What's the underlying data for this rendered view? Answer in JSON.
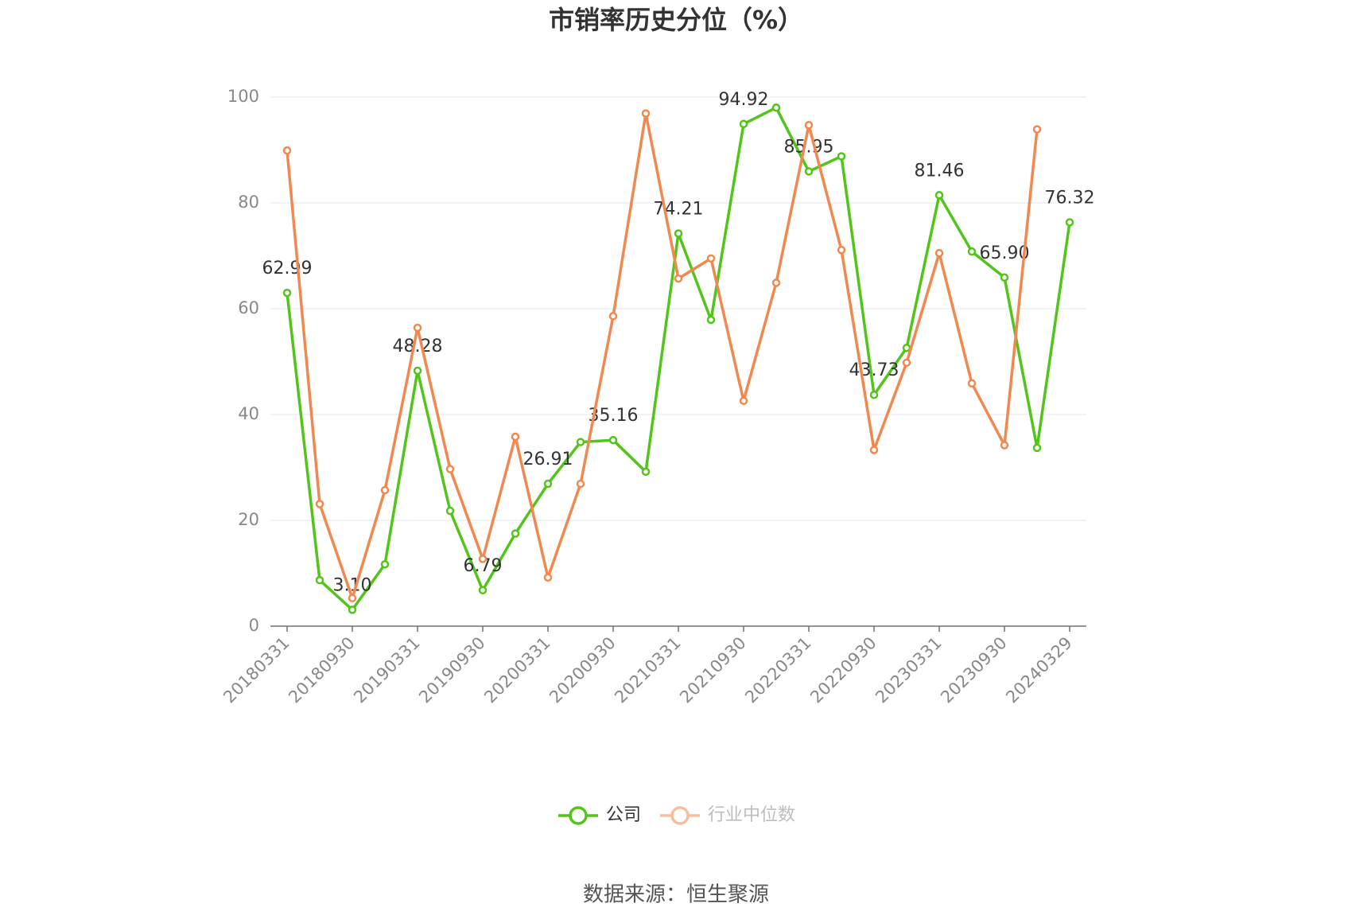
{
  "chart_data": {
    "type": "line",
    "title": "市销率历史分位（%）",
    "categories": [
      "20180331",
      null,
      "20180930",
      null,
      "20190331",
      null,
      "20190930",
      null,
      "20200331",
      null,
      "20200930",
      null,
      "20210331",
      null,
      "20210930",
      null,
      "20220331",
      null,
      "20220930",
      null,
      "20230331",
      null,
      "20230930",
      null,
      "20240329"
    ],
    "series": [
      {
        "name": "公司",
        "color": "#52c41a",
        "values": [
          62.99,
          8.7,
          3.1,
          11.7,
          48.28,
          21.8,
          6.79,
          17.5,
          26.91,
          34.8,
          35.16,
          29.2,
          74.21,
          57.9,
          94.92,
          98.0,
          85.95,
          88.8,
          43.73,
          52.6,
          81.46,
          70.8,
          65.9,
          33.7,
          76.32
        ],
        "value_labels": [
          "62.99",
          null,
          "3.10",
          null,
          "48.28",
          null,
          "6.79",
          null,
          "26.91",
          null,
          "35.16",
          null,
          "74.21",
          null,
          "94.92",
          null,
          "85.95",
          null,
          "43.73",
          null,
          "81.46",
          null,
          "65.90",
          null,
          "76.32"
        ]
      },
      {
        "name": "行业中位数",
        "color": "#f0884f",
        "values": [
          89.9,
          23.1,
          5.3,
          25.7,
          56.4,
          29.7,
          12.7,
          35.8,
          9.2,
          26.9,
          58.6,
          96.9,
          65.7,
          69.5,
          42.6,
          64.9,
          94.7,
          71.1,
          33.3,
          49.8,
          70.5,
          45.9,
          34.2,
          93.9,
          null
        ]
      }
    ],
    "ylim": [
      0,
      100
    ],
    "yticks": [
      0,
      20,
      40,
      60,
      80,
      100
    ],
    "grid": true,
    "legend": "bottom",
    "source": "数据来源：恒生聚源"
  }
}
